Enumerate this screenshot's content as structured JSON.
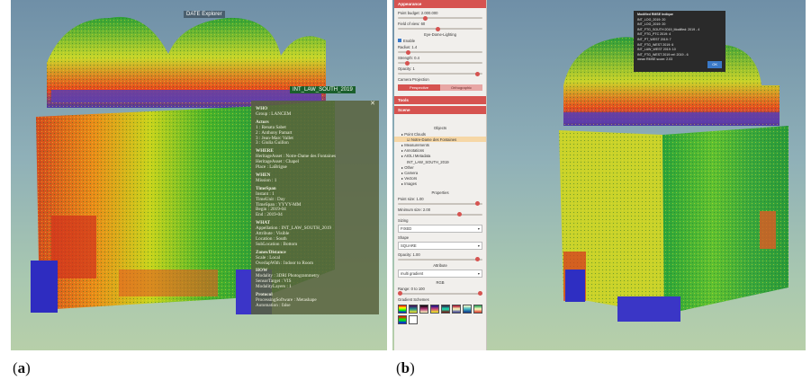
{
  "figure_labels": [
    "a",
    "b"
  ],
  "panel_a": {
    "viewer_title": "DATE Explorer",
    "annotation_tag": "INT_LAW_SOUTH_2019",
    "info_panel": {
      "close": "✕",
      "sections": [
        {
          "heading": "WHO",
          "lines": [
            "Group : LANCEM"
          ]
        },
        {
          "heading": "Actors",
          "lines": [
            "1 : Renata Sabet",
            "2 : Anthony Pamart",
            "3 : Jean-Marc Vallet",
            "3 : Giulia Guillon"
          ]
        },
        {
          "heading": "WHERE",
          "lines": [
            "HeritageAsset : Notre-Dame des Fontaines",
            "HeritageAsset : Chapel",
            "Place : LaBrigue"
          ]
        },
        {
          "heading": "WHEN",
          "lines": [
            "Mission : 1"
          ]
        },
        {
          "heading": "TimeSpan",
          "lines": [
            "Instant : 1",
            "TimeUnit : Day",
            "TimeSpan : YYYY-MM",
            "Begin : 2019-04",
            "End : 2019-04"
          ]
        },
        {
          "heading": "WHAT",
          "lines": [
            "Appellation : INT_LAW_SOUTH_2019",
            "Attribute : Visible",
            "Location : South",
            "SubLocation : Bottom"
          ]
        },
        {
          "heading": "Zones/Distance",
          "lines": [
            "Scale : Local",
            "OverlapWith : Indoor to Room"
          ]
        },
        {
          "heading": "HOW",
          "lines": [
            "Modality : 3DRI Photogrammetry",
            "SensorTarget : VIS",
            "ModalityLayers : 1"
          ]
        },
        {
          "heading": "Protocol",
          "lines": [
            "ProcessingSoftware : Metashape",
            "Automation : false"
          ]
        }
      ]
    }
  },
  "panel_b": {
    "sidebar": {
      "appearance_header": "Appearance",
      "point_budget_label": "Point budget: 2.000.000",
      "field_of_view_label": "Field of view: 60",
      "eye_dome_label": "Eye-Dome-Lighting",
      "enable_label": "Enable",
      "radius_label": "Radius: 1.4",
      "strength_label": "Strength: 0.4",
      "opacity_label": "Opacity: 1",
      "camera_projection_label": "Camera Projection",
      "perspective_label": "Perspective",
      "orthographic_label": "Orthographic",
      "tools_header": "Tools",
      "scene_header": "Scene",
      "objects_label": "Objects",
      "tree_items": [
        "▸ Point Clouds",
        "☑ Notre-Dame des Fontaines",
        "▸ Measurements",
        "▸ Annotations",
        "▸ AIOLI Metadata",
        "INT_LAW_SOUTH_2019",
        "▸ Other",
        "▸ Camera",
        "▸ Vectors",
        "▸ Images"
      ],
      "properties_label": "Properties",
      "point_size_label": "Point size: 1.00",
      "min_size_label": "Minimum size: 2.00",
      "sizing_label": "Sizing",
      "sizing_value": "FIXED",
      "shape_label": "Shape",
      "shape_value": "SQUARE",
      "opacity2_label": "Opacity: 1.00",
      "attribute_label": "Attribute",
      "attribute_value": "multi gradient",
      "gradient_header": "Gradient Schemes",
      "range_label": "Range: 0 to 100",
      "rgb_label": "RGB"
    },
    "dialog": {
      "title": "Modified RMSE Indique",
      "lines": [
        "INT_LOG_2019: 20",
        "INT_LOG_2019: 20",
        "INT_FTG_SOUTH 2019_Modified: 2019 - 4",
        "INT_FTG_PTC 2019: 4",
        "INT_PT_WEST 2019: 7",
        "INT_FTG_WEST 2019: 6",
        "INT_LAW_WEST 2019: 10",
        "INT_FTG_WEST 2019 ref: 2019 - 6",
        "mean RMSE score: 2.03"
      ],
      "ok_label": "OK"
    }
  },
  "colors": {
    "sidebar_accent": "#d65350",
    "info_panel_bg": "#5b6440",
    "annotation_tag_bg": "#1a5f2c",
    "dialog_bg": "#2a2a2a"
  }
}
